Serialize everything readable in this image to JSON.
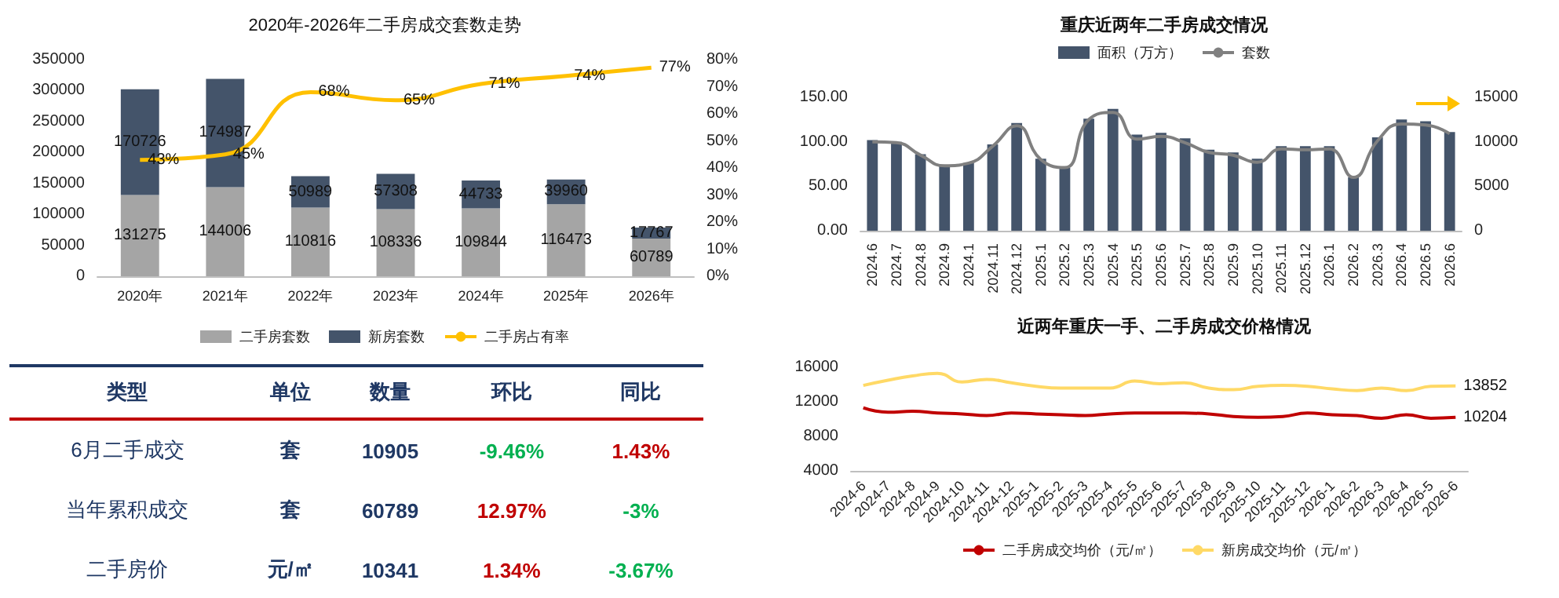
{
  "chart_data": [
    {
      "type": "bar",
      "title": "2020年-2026年二手房成交套数走势",
      "stacked": true,
      "legend": "bottom",
      "data_labels": true,
      "categories": [
        "2020年",
        "2021年",
        "2022年",
        "2023年",
        "2024年",
        "2025年",
        "2026年"
      ],
      "ylim": [
        0,
        350000
      ],
      "yticks": [
        0,
        50000,
        100000,
        150000,
        200000,
        250000,
        300000,
        350000
      ],
      "y2lim": [
        0,
        80
      ],
      "y2ticks": [
        {
          "value": 0,
          "label": "0%"
        },
        {
          "value": 10,
          "label": "10%"
        },
        {
          "value": 20,
          "label": "20%"
        },
        {
          "value": 30,
          "label": "30%"
        },
        {
          "value": 40,
          "label": "40%"
        },
        {
          "value": 50,
          "label": "50%"
        },
        {
          "value": 60,
          "label": "60%"
        },
        {
          "value": 70,
          "label": "70%"
        },
        {
          "value": 80,
          "label": "80%"
        }
      ],
      "series": [
        {
          "name": "二手房套数",
          "type": "bar",
          "color": "#a5a5a5",
          "values": [
            131275,
            144006,
            110816,
            108336,
            109844,
            116473,
            60789
          ]
        },
        {
          "name": "新房套数",
          "type": "bar",
          "color": "#44546a",
          "values": [
            170726,
            174987,
            50989,
            57308,
            44733,
            39960,
            17767
          ]
        },
        {
          "name": "二手房占有率",
          "type": "line",
          "axis": "y2",
          "color": "#ffc000",
          "values": [
            43,
            45,
            68,
            65,
            71,
            74,
            77
          ],
          "value_labels": [
            "43%",
            "45%",
            "68%",
            "65%",
            "71%",
            "74%",
            "77%"
          ]
        }
      ]
    },
    {
      "type": "bar",
      "title": "重庆近两年二手房成交情况",
      "legend": "top",
      "categories": [
        "2024.6",
        "2024.7",
        "2024.8",
        "2024.9",
        "2024.1",
        "2024.11",
        "2024.12",
        "2025.1",
        "2025.2",
        "2025.3",
        "2025.4",
        "2025.5",
        "2025.6",
        "2025.7",
        "2025.8",
        "2025.9",
        "2025.10",
        "2025.11",
        "2025.12",
        "2026.1",
        "2026.2",
        "2026.3",
        "2026.4",
        "2026.5",
        "2026.6"
      ],
      "ylim": [
        0,
        150
      ],
      "yticks": [
        {
          "value": 0,
          "label": "0.00"
        },
        {
          "value": 50,
          "label": "50.00"
        },
        {
          "value": 100,
          "label": "100.00"
        },
        {
          "value": 150,
          "label": "150.00"
        }
      ],
      "y2lim": [
        0,
        15000
      ],
      "y2ticks": [
        0,
        5000,
        10000,
        15000
      ],
      "series": [
        {
          "name": "面积（万方）",
          "type": "bar",
          "color": "#44546a",
          "values": [
            102,
            100,
            86,
            73,
            76,
            97,
            121,
            81,
            71,
            126,
            137,
            108,
            110,
            104,
            91,
            88,
            81,
            95,
            95,
            95,
            60,
            105,
            125,
            123,
            111
          ]
        },
        {
          "name": "套数",
          "type": "line",
          "axis": "y2",
          "color": "#808080",
          "values": [
            10000,
            9900,
            8500,
            7300,
            7600,
            9500,
            11800,
            8000,
            7100,
            12500,
            13300,
            10300,
            10600,
            9900,
            8800,
            8500,
            7700,
            9200,
            9100,
            9200,
            6000,
            10100,
            12000,
            11900,
            10905
          ]
        }
      ]
    },
    {
      "type": "line",
      "title": "近两年重庆一手、二手房成交价格情况",
      "legend": "bottom",
      "categories": [
        "2024-6",
        "2024-7",
        "2024-8",
        "2024-9",
        "2024-10",
        "2024-11",
        "2024-12",
        "2025-1",
        "2025-2",
        "2025-3",
        "2025-4",
        "2025-5",
        "2025-6",
        "2025-7",
        "2025-8",
        "2025-9",
        "2025-10",
        "2025-11",
        "2025-12",
        "2026-1",
        "2026-2",
        "2026-3",
        "2026-4",
        "2026-5",
        "2026-6"
      ],
      "ylim": [
        4000,
        16000
      ],
      "yticks": [
        4000,
        8000,
        12000,
        16000
      ],
      "series": [
        {
          "name": "二手房成交均价（元/㎡）",
          "color": "#c00000",
          "values": [
            11300,
            10800,
            10900,
            10700,
            10600,
            10400,
            10700,
            10600,
            10500,
            10400,
            10600,
            10700,
            10700,
            10700,
            10600,
            10300,
            10200,
            10300,
            10700,
            10500,
            10400,
            10100,
            10500,
            10100,
            10204
          ],
          "value_labels": [
            null,
            null,
            null,
            null,
            null,
            null,
            null,
            null,
            null,
            null,
            null,
            null,
            null,
            null,
            null,
            null,
            null,
            null,
            null,
            null,
            null,
            null,
            null,
            null,
            "10204"
          ]
        },
        {
          "name": "新房成交均价（元/㎡）",
          "color": "#ffd966",
          "values": [
            13900,
            14500,
            15000,
            15300,
            14300,
            14600,
            14200,
            13800,
            13600,
            13600,
            13600,
            14400,
            14100,
            14200,
            13600,
            13400,
            13800,
            13900,
            13800,
            13500,
            13300,
            13600,
            13300,
            13800,
            13852
          ],
          "value_labels": [
            null,
            null,
            null,
            null,
            null,
            null,
            null,
            null,
            null,
            null,
            null,
            null,
            null,
            null,
            null,
            null,
            null,
            null,
            null,
            null,
            null,
            null,
            null,
            null,
            "13852"
          ]
        }
      ]
    },
    {
      "type": "other",
      "categories": [
        "类型",
        "单位",
        "数量",
        "环比",
        "同比"
      ],
      "cell_labels": [
        [
          "6月二手成交",
          "套",
          "10905",
          "-9.46%",
          "1.43%"
        ],
        [
          "当年累积成交",
          "套",
          "60789",
          "12.97%",
          "-3%"
        ],
        [
          "二手房价",
          "元/㎡",
          "10341",
          "1.34%",
          "-3.67%"
        ]
      ],
      "colors": [
        [
          "#1f3864",
          "#1f3864",
          "#1f3864",
          "#00b050",
          "#c00000"
        ],
        [
          "#1f3864",
          "#1f3864",
          "#1f3864",
          "#c00000",
          "#00b050"
        ],
        [
          "#1f3864",
          "#1f3864",
          "#1f3864",
          "#c00000",
          "#00b050"
        ]
      ]
    }
  ]
}
